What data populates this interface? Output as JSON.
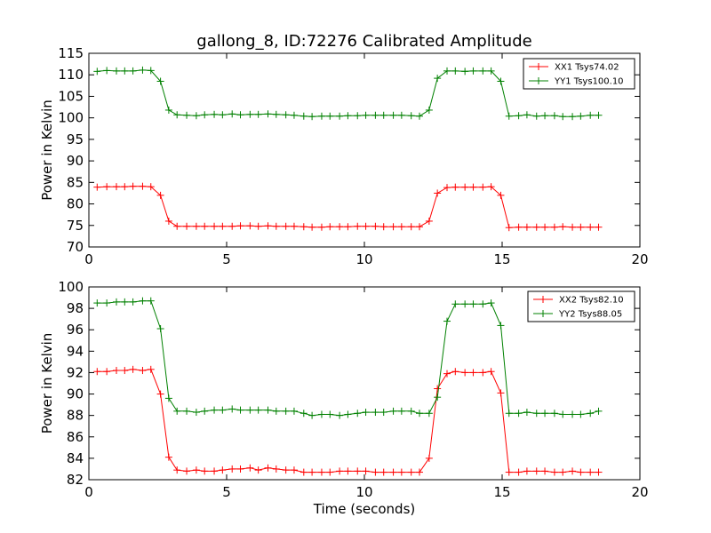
{
  "figure": {
    "title": "gallong_8, ID:72276 Calibrated Amplitude",
    "colors": {
      "red": "#ff0000",
      "green": "#008000",
      "background": "#ffffff"
    }
  },
  "chart_data": [
    {
      "type": "line",
      "xlabel": "",
      "ylabel": "Power in Kelvin",
      "xlim": [
        0,
        20
      ],
      "ylim": [
        70,
        115
      ],
      "xticks": [
        "0",
        "5",
        "10",
        "15",
        "20"
      ],
      "yticks": [
        "70",
        "75",
        "80",
        "85",
        "90",
        "95",
        "100",
        "105",
        "110",
        "115"
      ],
      "grid": false,
      "legend_position": "top-right",
      "x": [
        0.3,
        0.65,
        1.0,
        1.3,
        1.6,
        1.95,
        2.25,
        2.6,
        2.9,
        3.2,
        3.55,
        3.9,
        4.2,
        4.55,
        4.85,
        5.2,
        5.5,
        5.85,
        6.15,
        6.5,
        6.8,
        7.15,
        7.45,
        7.8,
        8.1,
        8.45,
        8.75,
        9.1,
        9.4,
        9.75,
        10.05,
        10.4,
        10.7,
        11.05,
        11.35,
        11.7,
        12.0,
        12.35,
        12.65,
        13.0,
        13.3,
        13.65,
        13.95,
        14.3,
        14.6,
        14.95,
        15.25,
        15.6,
        15.9,
        16.25,
        16.55,
        16.9,
        17.2,
        17.55,
        17.85,
        18.2,
        18.5
      ],
      "series": [
        {
          "name": "XX1 Tsys74.02",
          "color": "#ff0000",
          "values": [
            83.9,
            84.0,
            84.0,
            84.0,
            84.1,
            84.1,
            84.0,
            82.0,
            76.0,
            74.8,
            74.8,
            74.8,
            74.8,
            74.8,
            74.8,
            74.8,
            74.9,
            74.9,
            74.8,
            74.9,
            74.8,
            74.8,
            74.8,
            74.7,
            74.6,
            74.6,
            74.7,
            74.7,
            74.7,
            74.8,
            74.8,
            74.8,
            74.7,
            74.7,
            74.7,
            74.7,
            74.7,
            76.0,
            82.5,
            83.8,
            83.9,
            83.9,
            83.9,
            83.9,
            84.0,
            82.0,
            74.5,
            74.6,
            74.6,
            74.6,
            74.6,
            74.6,
            74.7,
            74.6,
            74.6,
            74.6,
            74.6
          ]
        },
        {
          "name": "YY1 Tsys100.10",
          "color": "#008000",
          "values": [
            110.8,
            111.0,
            110.9,
            110.9,
            110.9,
            111.1,
            111.0,
            108.5,
            101.8,
            100.7,
            100.6,
            100.5,
            100.7,
            100.8,
            100.7,
            100.9,
            100.7,
            100.8,
            100.8,
            100.9,
            100.8,
            100.7,
            100.6,
            100.4,
            100.3,
            100.4,
            100.4,
            100.4,
            100.5,
            100.5,
            100.6,
            100.6,
            100.6,
            100.6,
            100.6,
            100.5,
            100.4,
            101.8,
            109.2,
            110.9,
            110.9,
            110.8,
            110.9,
            110.9,
            110.9,
            108.5,
            100.4,
            100.5,
            100.7,
            100.4,
            100.5,
            100.5,
            100.3,
            100.3,
            100.4,
            100.6,
            100.6
          ]
        }
      ]
    },
    {
      "type": "line",
      "xlabel": "Time (seconds)",
      "ylabel": "Power in Kelvin",
      "xlim": [
        0,
        20
      ],
      "ylim": [
        82,
        100
      ],
      "xticks": [
        "0",
        "5",
        "10",
        "15",
        "20"
      ],
      "yticks": [
        "82",
        "84",
        "86",
        "88",
        "90",
        "92",
        "94",
        "96",
        "98",
        "100"
      ],
      "grid": false,
      "legend_position": "top-right",
      "x": [
        0.3,
        0.65,
        1.0,
        1.3,
        1.6,
        1.95,
        2.25,
        2.6,
        2.9,
        3.2,
        3.55,
        3.9,
        4.2,
        4.55,
        4.85,
        5.2,
        5.5,
        5.85,
        6.15,
        6.5,
        6.8,
        7.15,
        7.45,
        7.8,
        8.1,
        8.45,
        8.75,
        9.1,
        9.4,
        9.75,
        10.05,
        10.4,
        10.7,
        11.05,
        11.35,
        11.7,
        12.0,
        12.35,
        12.65,
        13.0,
        13.3,
        13.65,
        13.95,
        14.3,
        14.6,
        14.95,
        15.25,
        15.6,
        15.9,
        16.25,
        16.55,
        16.9,
        17.2,
        17.55,
        17.85,
        18.2,
        18.5
      ],
      "series": [
        {
          "name": "XX2 Tsys82.10",
          "color": "#ff0000",
          "values": [
            92.1,
            92.1,
            92.2,
            92.2,
            92.3,
            92.2,
            92.3,
            90.0,
            84.1,
            82.9,
            82.8,
            82.9,
            82.8,
            82.8,
            82.9,
            83.0,
            83.0,
            83.1,
            82.9,
            83.1,
            83.0,
            82.9,
            82.9,
            82.7,
            82.7,
            82.7,
            82.7,
            82.8,
            82.8,
            82.8,
            82.8,
            82.7,
            82.7,
            82.7,
            82.7,
            82.7,
            82.7,
            84.0,
            90.5,
            91.9,
            92.1,
            92.0,
            92.0,
            92.0,
            92.1,
            90.1,
            82.7,
            82.7,
            82.8,
            82.8,
            82.8,
            82.7,
            82.7,
            82.8,
            82.7,
            82.7,
            82.7
          ]
        },
        {
          "name": "YY2 Tsys88.05",
          "color": "#008000",
          "values": [
            98.5,
            98.5,
            98.6,
            98.6,
            98.6,
            98.7,
            98.7,
            96.1,
            89.6,
            88.4,
            88.4,
            88.3,
            88.4,
            88.5,
            88.5,
            88.6,
            88.5,
            88.5,
            88.5,
            88.5,
            88.4,
            88.4,
            88.4,
            88.2,
            88.0,
            88.1,
            88.1,
            88.0,
            88.1,
            88.2,
            88.3,
            88.3,
            88.3,
            88.4,
            88.4,
            88.4,
            88.2,
            88.2,
            89.7,
            96.8,
            98.4,
            98.4,
            98.4,
            98.4,
            98.5,
            96.4,
            88.2,
            88.2,
            88.3,
            88.2,
            88.2,
            88.2,
            88.1,
            88.1,
            88.1,
            88.2,
            88.4
          ]
        }
      ]
    }
  ]
}
